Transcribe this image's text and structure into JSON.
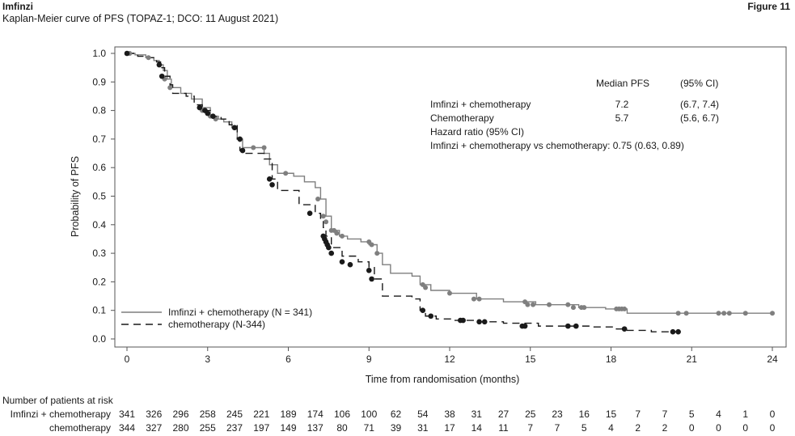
{
  "header": {
    "title": "Imfinzi",
    "figure_label": "Figure 11",
    "subtitle": "Kaplan-Meier curve of PFS (TOPAZ-1;  DCO: 11 August 2021)"
  },
  "stats_table": {
    "header_median": "Median PFS",
    "header_ci": "(95% CI)",
    "rows": [
      {
        "label": "Imfinzi + chemotherapy",
        "median": "7.2",
        "ci": "(6.7, 7.4)"
      },
      {
        "label": "Chemotherapy",
        "median": "5.7",
        "ci": "(5.6, 6.7)"
      }
    ],
    "hr_title": "Hazard ratio (95% CI)",
    "hr_line": "Imfinzi + chemotherapy vs chemotherapy: 0.75 (0.63, 0.89)"
  },
  "chart_data": {
    "type": "line",
    "title": "",
    "xlabel": "Time from randomisation (months)",
    "ylabel": "Probability of PFS",
    "xlim": [
      0,
      24
    ],
    "ylim": [
      0,
      1.0
    ],
    "xticks": [
      "0",
      "3",
      "6",
      "9",
      "12",
      "15",
      "18",
      "21",
      "24"
    ],
    "yticks": [
      "0.0",
      "0.1",
      "0.2",
      "0.3",
      "0.4",
      "0.5",
      "0.6",
      "0.7",
      "0.8",
      "0.9",
      "1.0"
    ],
    "legend_position": "bottom-left",
    "series": [
      {
        "name": "Imfinzi + chemotherapy (N = 341)",
        "color": "#7f7f7f",
        "style": "solid",
        "x": [
          0,
          0.3,
          0.7,
          1.0,
          1.2,
          1.35,
          1.5,
          1.65,
          2.0,
          2.4,
          2.8,
          3.1,
          3.4,
          3.6,
          3.9,
          4.1,
          4.3,
          4.6,
          5.1,
          5.3,
          5.6,
          6.2,
          6.6,
          7.0,
          7.2,
          7.4,
          7.6,
          7.9,
          8.2,
          8.7,
          9.0,
          9.3,
          9.5,
          9.8,
          10.6,
          10.9,
          11.3,
          12.0,
          13.0,
          14.0,
          15.2,
          16.8,
          17.8,
          18.6,
          21.0,
          24.0
        ],
        "y": [
          1.0,
          0.995,
          0.985,
          0.975,
          0.96,
          0.94,
          0.91,
          0.88,
          0.86,
          0.84,
          0.81,
          0.78,
          0.77,
          0.76,
          0.74,
          0.7,
          0.67,
          0.67,
          0.65,
          0.61,
          0.58,
          0.57,
          0.55,
          0.53,
          0.49,
          0.43,
          0.38,
          0.36,
          0.35,
          0.34,
          0.33,
          0.3,
          0.26,
          0.23,
          0.22,
          0.19,
          0.17,
          0.16,
          0.14,
          0.13,
          0.12,
          0.11,
          0.105,
          0.09,
          0.09,
          0.09
        ],
        "censor_x": [
          0.1,
          0.8,
          1.4,
          1.6,
          2.8,
          3.1,
          3.3,
          4.7,
          5.1,
          5.9,
          7.1,
          7.3,
          7.4,
          7.6,
          7.7,
          7.8,
          8.0,
          9.0,
          9.1,
          9.3,
          11.0,
          11.1,
          12.0,
          12.9,
          13.1,
          14.8,
          14.9,
          15.1,
          15.7,
          16.4,
          16.6,
          16.9,
          17.0,
          18.2,
          18.3,
          18.4,
          18.5,
          20.5,
          20.8,
          22.0,
          22.2,
          22.4,
          23.0,
          24.0
        ],
        "censor_y": [
          1.0,
          0.985,
          0.91,
          0.88,
          0.8,
          0.78,
          0.77,
          0.67,
          0.67,
          0.58,
          0.49,
          0.43,
          0.41,
          0.38,
          0.38,
          0.37,
          0.36,
          0.34,
          0.33,
          0.3,
          0.19,
          0.18,
          0.16,
          0.14,
          0.14,
          0.13,
          0.12,
          0.12,
          0.12,
          0.12,
          0.11,
          0.11,
          0.11,
          0.105,
          0.105,
          0.105,
          0.105,
          0.09,
          0.09,
          0.09,
          0.09,
          0.09,
          0.09,
          0.09
        ]
      },
      {
        "name": "chemotherapy (N-344)",
        "color": "#1a1a1a",
        "style": "dashed",
        "x": [
          0,
          0.4,
          0.8,
          1.1,
          1.25,
          1.4,
          1.6,
          1.7,
          2.2,
          2.5,
          2.8,
          3.1,
          3.5,
          3.8,
          4.1,
          4.2,
          4.4,
          5.1,
          5.4,
          5.6,
          6.4,
          7.0,
          7.2,
          7.3,
          7.4,
          7.6,
          8.0,
          8.6,
          9.0,
          9.2,
          9.5,
          10.6,
          10.9,
          11.1,
          11.5,
          12.2,
          13.0,
          14.0,
          15.3,
          16.2,
          17.2,
          18.2,
          18.6,
          19.5,
          20.5
        ],
        "y": [
          1.0,
          0.99,
          0.985,
          0.97,
          0.95,
          0.92,
          0.89,
          0.86,
          0.85,
          0.82,
          0.8,
          0.78,
          0.77,
          0.75,
          0.7,
          0.66,
          0.65,
          0.63,
          0.56,
          0.52,
          0.47,
          0.44,
          0.42,
          0.39,
          0.36,
          0.32,
          0.29,
          0.27,
          0.25,
          0.21,
          0.15,
          0.14,
          0.1,
          0.08,
          0.07,
          0.065,
          0.06,
          0.055,
          0.045,
          0.045,
          0.042,
          0.035,
          0.03,
          0.025,
          0.025
        ],
        "censor_x": [
          0.0,
          1.2,
          1.3,
          2.7,
          2.9,
          3.0,
          3.2,
          4.0,
          4.2,
          4.3,
          5.3,
          5.4,
          6.8,
          7.3,
          7.35,
          7.4,
          7.45,
          7.5,
          7.6,
          8.0,
          8.3,
          9.0,
          9.1,
          11.0,
          11.3,
          12.4,
          12.5,
          13.1,
          13.3,
          14.7,
          14.8,
          16.4,
          16.7,
          18.5,
          20.3,
          20.5
        ],
        "censor_y": [
          1.0,
          0.96,
          0.92,
          0.81,
          0.8,
          0.79,
          0.78,
          0.74,
          0.7,
          0.66,
          0.56,
          0.54,
          0.44,
          0.36,
          0.35,
          0.34,
          0.33,
          0.32,
          0.3,
          0.27,
          0.26,
          0.24,
          0.21,
          0.1,
          0.08,
          0.065,
          0.065,
          0.06,
          0.06,
          0.045,
          0.045,
          0.045,
          0.045,
          0.035,
          0.025,
          0.025
        ]
      }
    ]
  },
  "at_risk": {
    "title": "Number of patients at risk",
    "times": [
      0,
      1,
      2,
      3,
      4,
      5,
      6,
      7,
      8,
      9,
      10,
      11,
      12,
      13,
      14,
      15,
      16,
      17,
      18,
      19,
      20,
      21,
      22,
      23,
      24
    ],
    "rows": [
      {
        "label": "Imfinzi + chemotherapy",
        "values": [
          "341",
          "326",
          "296",
          "258",
          "245",
          "221",
          "189",
          "174",
          "106",
          "100",
          "62",
          "54",
          "38",
          "31",
          "27",
          "25",
          "23",
          "16",
          "15",
          "7",
          "7",
          "5",
          "4",
          "1",
          "0"
        ]
      },
      {
        "label": "chemotherapy",
        "values": [
          "344",
          "327",
          "280",
          "255",
          "237",
          "197",
          "149",
          "137",
          "80",
          "71",
          "39",
          "31",
          "17",
          "14",
          "11",
          "7",
          "7",
          "5",
          "4",
          "2",
          "2",
          "0",
          "0",
          "0",
          "0"
        ]
      }
    ]
  }
}
